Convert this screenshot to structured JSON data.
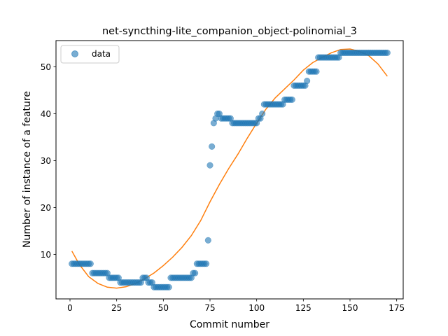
{
  "chart_data": {
    "type": "scatter",
    "title": "net-syncthing-lite_companion_object-polinomial_3",
    "xlabel": "Commit number",
    "ylabel": "Number of instance of a feature",
    "xlim": [
      -7.5,
      178.5
    ],
    "ylim": [
      0.5,
      55.6
    ],
    "xticks": [
      0,
      25,
      50,
      75,
      100,
      125,
      150,
      175
    ],
    "yticks": [
      10,
      20,
      30,
      40,
      50
    ],
    "grid": false,
    "legend_position": "top-left",
    "series": [
      {
        "name": "data",
        "kind": "scatter",
        "color": "#1f77b4",
        "points": [
          [
            1,
            8
          ],
          [
            2,
            8
          ],
          [
            3,
            8
          ],
          [
            4,
            8
          ],
          [
            5,
            8
          ],
          [
            6,
            8
          ],
          [
            7,
            8
          ],
          [
            8,
            8
          ],
          [
            9,
            8
          ],
          [
            10,
            8
          ],
          [
            11,
            8
          ],
          [
            12,
            6
          ],
          [
            13,
            6
          ],
          [
            14,
            6
          ],
          [
            15,
            6
          ],
          [
            16,
            6
          ],
          [
            17,
            6
          ],
          [
            18,
            6
          ],
          [
            19,
            6
          ],
          [
            20,
            6
          ],
          [
            21,
            5
          ],
          [
            22,
            5
          ],
          [
            23,
            5
          ],
          [
            24,
            5
          ],
          [
            25,
            5
          ],
          [
            26,
            5
          ],
          [
            27,
            4
          ],
          [
            28,
            4
          ],
          [
            29,
            4
          ],
          [
            30,
            4
          ],
          [
            31,
            4
          ],
          [
            32,
            4
          ],
          [
            33,
            4
          ],
          [
            34,
            4
          ],
          [
            35,
            4
          ],
          [
            36,
            4
          ],
          [
            37,
            4
          ],
          [
            38,
            4
          ],
          [
            39,
            5
          ],
          [
            40,
            5
          ],
          [
            41,
            5
          ],
          [
            42,
            4
          ],
          [
            43,
            4
          ],
          [
            44,
            4
          ],
          [
            45,
            3
          ],
          [
            46,
            3
          ],
          [
            47,
            3
          ],
          [
            48,
            3
          ],
          [
            49,
            3
          ],
          [
            50,
            3
          ],
          [
            51,
            3
          ],
          [
            52,
            3
          ],
          [
            53,
            3
          ],
          [
            54,
            5
          ],
          [
            55,
            5
          ],
          [
            56,
            5
          ],
          [
            57,
            5
          ],
          [
            58,
            5
          ],
          [
            59,
            5
          ],
          [
            60,
            5
          ],
          [
            61,
            5
          ],
          [
            62,
            5
          ],
          [
            63,
            5
          ],
          [
            64,
            5
          ],
          [
            65,
            5
          ],
          [
            66,
            6
          ],
          [
            67,
            6
          ],
          [
            68,
            8
          ],
          [
            69,
            8
          ],
          [
            70,
            8
          ],
          [
            71,
            8
          ],
          [
            72,
            8
          ],
          [
            73,
            8
          ],
          [
            74,
            13
          ],
          [
            75,
            29
          ],
          [
            76,
            33
          ],
          [
            77,
            38
          ],
          [
            78,
            39
          ],
          [
            79,
            40
          ],
          [
            80,
            40
          ],
          [
            81,
            39
          ],
          [
            82,
            39
          ],
          [
            83,
            39
          ],
          [
            84,
            39
          ],
          [
            85,
            39
          ],
          [
            86,
            39
          ],
          [
            87,
            38
          ],
          [
            88,
            38
          ],
          [
            89,
            38
          ],
          [
            90,
            38
          ],
          [
            91,
            38
          ],
          [
            92,
            38
          ],
          [
            93,
            38
          ],
          [
            94,
            38
          ],
          [
            95,
            38
          ],
          [
            96,
            38
          ],
          [
            97,
            38
          ],
          [
            98,
            38
          ],
          [
            99,
            38
          ],
          [
            100,
            38
          ],
          [
            101,
            39
          ],
          [
            102,
            39
          ],
          [
            103,
            40
          ],
          [
            104,
            42
          ],
          [
            105,
            42
          ],
          [
            106,
            42
          ],
          [
            107,
            42
          ],
          [
            108,
            42
          ],
          [
            109,
            42
          ],
          [
            110,
            42
          ],
          [
            111,
            42
          ],
          [
            112,
            42
          ],
          [
            113,
            42
          ],
          [
            114,
            42
          ],
          [
            115,
            43
          ],
          [
            116,
            43
          ],
          [
            117,
            43
          ],
          [
            118,
            43
          ],
          [
            119,
            43
          ],
          [
            120,
            46
          ],
          [
            121,
            46
          ],
          [
            122,
            46
          ],
          [
            123,
            46
          ],
          [
            124,
            46
          ],
          [
            125,
            46
          ],
          [
            126,
            46
          ],
          [
            127,
            47
          ],
          [
            128,
            49
          ],
          [
            129,
            49
          ],
          [
            130,
            49
          ],
          [
            131,
            49
          ],
          [
            132,
            49
          ],
          [
            133,
            52
          ],
          [
            134,
            52
          ],
          [
            135,
            52
          ],
          [
            136,
            52
          ],
          [
            137,
            52
          ],
          [
            138,
            52
          ],
          [
            139,
            52
          ],
          [
            140,
            52
          ],
          [
            141,
            52
          ],
          [
            142,
            52
          ],
          [
            143,
            52
          ],
          [
            144,
            52
          ],
          [
            145,
            53
          ],
          [
            146,
            53
          ],
          [
            147,
            53
          ],
          [
            148,
            53
          ],
          [
            149,
            53
          ],
          [
            150,
            53
          ],
          [
            151,
            53
          ],
          [
            152,
            53
          ],
          [
            153,
            53
          ],
          [
            154,
            53
          ],
          [
            155,
            53
          ],
          [
            156,
            53
          ],
          [
            157,
            53
          ],
          [
            158,
            53
          ],
          [
            159,
            53
          ],
          [
            160,
            53
          ],
          [
            161,
            53
          ],
          [
            162,
            53
          ],
          [
            163,
            53
          ],
          [
            164,
            53
          ],
          [
            165,
            53
          ],
          [
            166,
            53
          ],
          [
            167,
            53
          ],
          [
            168,
            53
          ],
          [
            169,
            53
          ],
          [
            170,
            53
          ]
        ]
      },
      {
        "name": "",
        "kind": "line",
        "color": "#ff7f0e",
        "points": [
          [
            1,
            10.7
          ],
          [
            5,
            7.85
          ],
          [
            10,
            5.25
          ],
          [
            15,
            3.79
          ],
          [
            20,
            3.0
          ],
          [
            25,
            2.8
          ],
          [
            30,
            3.09
          ],
          [
            35,
            3.78
          ],
          [
            40,
            4.79
          ],
          [
            45,
            6.03
          ],
          [
            50,
            7.6
          ],
          [
            55,
            9.4
          ],
          [
            60,
            11.5
          ],
          [
            65,
            14.0
          ],
          [
            70,
            17.2
          ],
          [
            75,
            21.2
          ],
          [
            80,
            24.9
          ],
          [
            85,
            28.3
          ],
          [
            90,
            31.4
          ],
          [
            95,
            34.8
          ],
          [
            100,
            38.0
          ],
          [
            105,
            41.0
          ],
          [
            110,
            43.4
          ],
          [
            115,
            45.3
          ],
          [
            120,
            47.2
          ],
          [
            125,
            49.3
          ],
          [
            130,
            50.9
          ],
          [
            135,
            52.0
          ],
          [
            140,
            53.0
          ],
          [
            145,
            53.7
          ],
          [
            150,
            53.8
          ],
          [
            155,
            53.3
          ],
          [
            160,
            52.4
          ],
          [
            165,
            50.6
          ],
          [
            170,
            48.0
          ]
        ]
      }
    ]
  }
}
